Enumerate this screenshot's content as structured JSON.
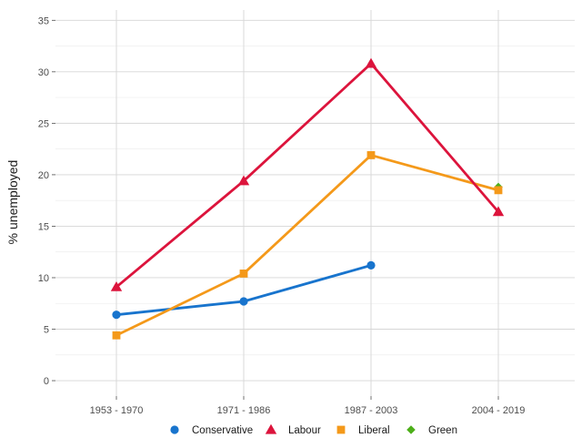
{
  "chart_data": {
    "type": "line",
    "title": "",
    "xlabel": "",
    "ylabel": "% unemployed",
    "categories": [
      "1953 - 1970",
      "1971 - 1986",
      "1987 - 2003",
      "2004 - 2019"
    ],
    "ylim": [
      -1.5,
      36
    ],
    "yticks": [
      0,
      5,
      10,
      15,
      20,
      25,
      30,
      35
    ],
    "grid": true,
    "legend_position": "bottom",
    "series": [
      {
        "name": "Conservative",
        "color": "#1874CD",
        "marker": "circle",
        "values": [
          6.4,
          7.7,
          11.2,
          null
        ]
      },
      {
        "name": "Labour",
        "color": "#DC143C",
        "marker": "triangle",
        "values": [
          9.1,
          19.4,
          30.8,
          16.4
        ]
      },
      {
        "name": "Liberal",
        "color": "#F4991A",
        "marker": "square",
        "values": [
          4.4,
          10.4,
          21.9,
          18.5
        ]
      },
      {
        "name": "Green",
        "color": "#4DAF1A",
        "marker": "diamond",
        "values": [
          null,
          null,
          null,
          18.8
        ]
      }
    ]
  }
}
